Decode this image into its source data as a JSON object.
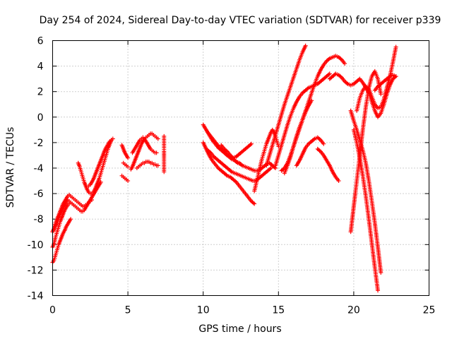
{
  "chart_data": {
    "type": "scatter",
    "title": "Day 254 of 2024, Sidereal Day-to-day VTEC variation (SDTVAR) for receiver p339",
    "xlabel": "GPS time / hours",
    "ylabel": "SDTVAR / TECUs",
    "xlim": [
      0,
      25
    ],
    "ylim": [
      -14,
      6
    ],
    "xticks": [
      0,
      5,
      10,
      15,
      20,
      25
    ],
    "xtick_labels": [
      "0",
      "5",
      "10",
      "15",
      "20",
      "25"
    ],
    "yticks": [
      -14,
      -12,
      -10,
      -8,
      -6,
      -4,
      -2,
      0,
      2,
      4,
      6
    ],
    "ytick_labels": [
      "-14",
      "-12",
      "-10",
      "-8",
      "-6",
      "-4",
      "-2",
      "0",
      "2",
      "4",
      "6"
    ],
    "grid": true,
    "marker": "+",
    "color": "#ff0000",
    "series": [
      {
        "x": [
          0.0,
          0.1,
          0.2,
          0.3,
          0.4,
          0.5,
          0.6,
          0.7,
          0.8,
          0.9,
          1.0,
          1.1,
          1.2
        ],
        "y": [
          -11.4,
          -11.2,
          -10.8,
          -10.4,
          -10.0,
          -9.7,
          -9.4,
          -9.1,
          -8.9,
          -8.6,
          -8.4,
          -8.2,
          -8.0
        ]
      },
      {
        "x": [
          0.0,
          0.1,
          0.2,
          0.3,
          0.4,
          0.5,
          0.6,
          0.7,
          0.8,
          0.9,
          1.0,
          1.1
        ],
        "y": [
          -10.2,
          -9.9,
          -9.4,
          -9.0,
          -8.6,
          -8.2,
          -7.9,
          -7.6,
          -7.3,
          -7.1,
          -6.9,
          -6.8
        ]
      },
      {
        "x": [
          0.0,
          0.1,
          0.2,
          0.3,
          0.4,
          0.5,
          0.6,
          0.7,
          0.8,
          0.9,
          1.0,
          1.1,
          1.2,
          1.3,
          1.4,
          1.5,
          1.6,
          1.7,
          1.8,
          1.9,
          2.0,
          2.1,
          2.2,
          2.3,
          2.4,
          2.5,
          2.6,
          2.7,
          2.8,
          2.9,
          3.0,
          3.1,
          3.2
        ],
        "y": [
          -9.0,
          -8.8,
          -8.5,
          -8.2,
          -7.9,
          -7.6,
          -7.4,
          -7.1,
          -6.9,
          -6.7,
          -6.5,
          -6.6,
          -6.7,
          -6.8,
          -6.9,
          -7.0,
          -7.1,
          -7.2,
          -7.3,
          -7.4,
          -7.4,
          -7.3,
          -7.1,
          -6.9,
          -6.7,
          -6.5,
          -6.3,
          -6.1,
          -5.9,
          -5.7,
          -5.5,
          -5.3,
          -5.1
        ]
      },
      {
        "x": [
          0.0,
          0.1,
          0.2,
          0.3,
          0.4,
          0.5,
          0.6,
          0.7,
          0.8,
          0.9,
          1.0,
          1.1,
          1.2,
          1.3,
          1.4,
          1.5,
          1.6,
          1.7,
          1.8,
          1.9,
          2.0,
          2.1,
          2.2,
          2.3,
          2.4,
          2.5,
          2.6
        ],
        "y": [
          -9.0,
          -8.7,
          -8.3,
          -8.0,
          -7.7,
          -7.4,
          -7.1,
          -6.8,
          -6.6,
          -6.4,
          -6.2,
          -6.1,
          -6.2,
          -6.3,
          -6.4,
          -6.5,
          -6.6,
          -6.7,
          -6.8,
          -6.9,
          -7.0,
          -7.0,
          -6.9,
          -6.8,
          -6.7,
          -6.6,
          -6.5
        ]
      },
      {
        "x": [
          1.7,
          1.8,
          1.9,
          2.0,
          2.1,
          2.2,
          2.3,
          2.4,
          2.5,
          2.6,
          2.7,
          2.8,
          2.9,
          3.0,
          3.1,
          3.2,
          3.3,
          3.4,
          3.5,
          3.6,
          3.7,
          3.8,
          3.9
        ],
        "y": [
          -3.6,
          -3.9,
          -4.3,
          -4.7,
          -5.1,
          -5.4,
          -5.7,
          -5.9,
          -6.0,
          -6.0,
          -5.9,
          -5.7,
          -5.4,
          -5.1,
          -4.8,
          -4.4,
          -4.0,
          -3.6,
          -3.2,
          -2.8,
          -2.4,
          -2.1,
          -1.8
        ]
      },
      {
        "x": [
          2.4,
          2.5,
          2.6,
          2.7,
          2.8,
          2.9,
          3.0,
          3.1,
          3.2,
          3.3,
          3.4,
          3.5,
          3.6,
          3.7,
          3.8,
          3.9,
          4.0
        ],
        "y": [
          -5.4,
          -5.3,
          -5.1,
          -4.9,
          -4.6,
          -4.3,
          -4.0,
          -3.7,
          -3.4,
          -3.1,
          -2.8,
          -2.5,
          -2.3,
          -2.1,
          -1.9,
          -1.8,
          -1.7
        ]
      },
      {
        "x": [
          4.6,
          4.7,
          4.8,
          4.9,
          5.0
        ],
        "y": [
          -2.2,
          -2.5,
          -2.8,
          -3.0,
          -3.2
        ]
      },
      {
        "x": [
          4.6,
          4.7,
          4.8,
          4.9,
          5.0
        ],
        "y": [
          -4.6,
          -4.7,
          -4.8,
          -4.9,
          -5.0
        ]
      },
      {
        "x": [
          4.7,
          4.8,
          4.9,
          5.0
        ],
        "y": [
          -3.6,
          -3.7,
          -3.8,
          -3.9
        ]
      },
      {
        "x": [
          5.2,
          5.3,
          5.4,
          5.5,
          5.6,
          5.7,
          5.8,
          5.9,
          6.0,
          6.1,
          6.2,
          6.3,
          6.4,
          6.5,
          6.6,
          6.7,
          6.8,
          6.9,
          7.0
        ],
        "y": [
          -4.1,
          -3.9,
          -3.6,
          -3.3,
          -3.0,
          -2.7,
          -2.4,
          -2.1,
          -1.9,
          -1.7,
          -1.6,
          -1.5,
          -1.4,
          -1.3,
          -1.3,
          -1.4,
          -1.5,
          -1.6,
          -1.7
        ]
      },
      {
        "x": [
          5.3,
          5.4,
          5.5,
          5.6,
          5.7,
          5.8,
          5.9,
          6.0,
          6.1,
          6.2,
          6.3,
          6.4,
          6.5,
          6.6,
          6.7,
          6.8,
          6.9
        ],
        "y": [
          -2.8,
          -2.6,
          -2.4,
          -2.2,
          -2.0,
          -1.8,
          -1.7,
          -1.6,
          -1.7,
          -1.9,
          -2.1,
          -2.3,
          -2.5,
          -2.6,
          -2.7,
          -2.8,
          -2.8
        ]
      },
      {
        "x": [
          5.6,
          5.7,
          5.8,
          5.9,
          6.0,
          6.1,
          6.2,
          6.3,
          6.4,
          6.5,
          6.6,
          6.7,
          6.8,
          6.9,
          7.0
        ],
        "y": [
          -4.0,
          -3.9,
          -3.8,
          -3.7,
          -3.6,
          -3.6,
          -3.5,
          -3.5,
          -3.5,
          -3.6,
          -3.6,
          -3.7,
          -3.7,
          -3.8,
          -3.8
        ]
      },
      {
        "x": [
          7.4,
          7.4,
          7.4,
          7.4,
          7.4
        ],
        "y": [
          -1.5,
          -2.4,
          -2.7,
          -3.4,
          -4.3
        ]
      },
      {
        "x": [
          10.0,
          10.2,
          10.4,
          10.6,
          10.8,
          11.0,
          11.2,
          11.4,
          11.6,
          11.8,
          12.0,
          12.2,
          12.4,
          12.6,
          12.8,
          13.0,
          13.2,
          13.4,
          13.6,
          13.8,
          14.0,
          14.2,
          14.4,
          14.6,
          14.8
        ],
        "y": [
          -0.6,
          -1.0,
          -1.4,
          -1.8,
          -2.1,
          -2.4,
          -2.6,
          -2.8,
          -3.0,
          -3.1,
          -3.3,
          -3.5,
          -3.6,
          -3.8,
          -3.9,
          -4.0,
          -4.1,
          -4.2,
          -4.2,
          -4.1,
          -3.9,
          -3.7,
          -3.6,
          -3.8,
          -4.0
        ]
      },
      {
        "x": [
          10.0,
          10.2,
          10.4,
          10.6,
          10.8,
          11.0,
          11.2,
          11.4,
          11.6,
          11.8,
          12.0,
          12.2,
          12.4,
          12.6,
          12.8,
          13.0,
          13.2,
          13.4
        ],
        "y": [
          -2.0,
          -2.5,
          -3.0,
          -3.4,
          -3.7,
          -4.0,
          -4.2,
          -4.4,
          -4.6,
          -4.7,
          -4.9,
          -5.1,
          -5.4,
          -5.7,
          -6.0,
          -6.3,
          -6.6,
          -6.8
        ]
      },
      {
        "x": [
          10.3,
          10.5,
          10.7,
          10.9,
          11.1,
          11.3,
          11.5,
          11.7,
          11.9,
          12.1,
          12.3,
          12.5
        ],
        "y": [
          -1.2,
          -1.5,
          -1.8,
          -2.1,
          -2.4,
          -2.6,
          -2.9,
          -3.1,
          -3.3,
          -3.4,
          -3.6,
          -3.7
        ]
      },
      {
        "x": [
          10.3,
          10.5,
          10.7,
          10.9,
          11.1,
          11.3,
          11.5,
          11.7,
          11.9,
          12.1,
          12.3,
          12.5,
          12.7,
          12.9,
          13.1,
          13.3,
          13.5,
          13.7,
          13.9,
          14.1,
          14.3,
          14.5
        ],
        "y": [
          -2.6,
          -2.8,
          -3.1,
          -3.3,
          -3.5,
          -3.7,
          -3.9,
          -4.1,
          -4.3,
          -4.4,
          -4.5,
          -4.6,
          -4.7,
          -4.8,
          -4.9,
          -5.0,
          -5.0,
          -4.8,
          -4.6,
          -4.4,
          -4.2,
          -4.0
        ]
      },
      {
        "x": [
          11.2,
          11.4,
          11.6,
          11.8,
          12.0,
          12.2,
          12.4,
          12.6,
          12.8,
          13.0,
          13.2
        ],
        "y": [
          -2.2,
          -2.5,
          -2.7,
          -3.0,
          -3.2,
          -3.1,
          -2.9,
          -2.7,
          -2.5,
          -2.3,
          -2.1
        ]
      },
      {
        "x": [
          13.4,
          13.5,
          13.6,
          13.7,
          13.8,
          13.9,
          14.0,
          14.1,
          14.2,
          14.3,
          14.4,
          14.5,
          14.6,
          14.7,
          14.8,
          14.9,
          15.0
        ],
        "y": [
          -5.8,
          -5.3,
          -4.8,
          -4.3,
          -3.8,
          -3.3,
          -2.9,
          -2.5,
          -2.1,
          -1.8,
          -1.5,
          -1.2,
          -1.0,
          -1.2,
          -1.5,
          -1.9,
          -2.3
        ]
      },
      {
        "x": [
          14.2,
          14.4,
          14.6,
          14.8,
          15.0,
          15.2,
          15.4,
          15.6,
          15.8,
          16.0,
          16.2,
          16.4,
          16.6,
          16.8
        ],
        "y": [
          -3.8,
          -3.0,
          -2.2,
          -1.4,
          -0.6,
          0.2,
          1.0,
          1.7,
          2.4,
          3.1,
          3.8,
          4.5,
          5.1,
          5.6
        ]
      },
      {
        "x": [
          14.8,
          15.0,
          15.2,
          15.4,
          15.6,
          15.8,
          16.0,
          16.2,
          16.4,
          16.6,
          16.8,
          17.0,
          17.2,
          17.4,
          17.6,
          17.8,
          18.0,
          18.2,
          18.4
        ],
        "y": [
          -3.8,
          -3.0,
          -2.2,
          -1.4,
          -0.6,
          0.1,
          0.7,
          1.2,
          1.6,
          1.9,
          2.1,
          2.3,
          2.4,
          2.5,
          2.6,
          2.8,
          3.0,
          3.2,
          3.4
        ]
      },
      {
        "x": [
          15.2,
          15.4,
          15.6,
          15.8,
          16.0,
          16.2,
          16.4,
          16.6,
          16.8,
          17.0,
          17.2,
          17.4,
          17.6,
          17.8,
          18.0,
          18.2,
          18.4,
          18.6,
          18.8,
          19.0,
          19.2,
          19.4
        ],
        "y": [
          -4.2,
          -4.0,
          -3.6,
          -3.0,
          -2.3,
          -1.6,
          -0.9,
          -0.2,
          0.5,
          1.2,
          1.9,
          2.6,
          3.2,
          3.7,
          4.1,
          4.4,
          4.6,
          4.7,
          4.8,
          4.7,
          4.5,
          4.2
        ]
      },
      {
        "x": [
          15.4,
          15.6,
          15.8,
          16.0,
          16.2,
          16.4,
          16.6,
          16.8,
          17.0,
          17.2
        ],
        "y": [
          -4.4,
          -3.8,
          -3.1,
          -2.3,
          -1.5,
          -0.8,
          -0.2,
          0.4,
          0.9,
          1.3
        ]
      },
      {
        "x": [
          16.2,
          16.4,
          16.6,
          16.8,
          17.0,
          17.2,
          17.4,
          17.6,
          17.8,
          18.0
        ],
        "y": [
          -3.8,
          -3.4,
          -2.9,
          -2.4,
          -2.1,
          -1.9,
          -1.7,
          -1.6,
          -1.8,
          -2.1
        ]
      },
      {
        "x": [
          17.6,
          17.8,
          18.0,
          18.2,
          18.4,
          18.6,
          18.8,
          19.0
        ],
        "y": [
          -2.5,
          -2.7,
          -3.0,
          -3.4,
          -3.8,
          -4.3,
          -4.7,
          -5.0
        ]
      },
      {
        "x": [
          18.4,
          18.6,
          18.8,
          19.0,
          19.2,
          19.4,
          19.6,
          19.8,
          20.0,
          20.2,
          20.4,
          20.6,
          20.8,
          21.0
        ],
        "y": [
          3.0,
          3.2,
          3.4,
          3.3,
          3.1,
          2.8,
          2.6,
          2.5,
          2.6,
          2.8,
          3.0,
          2.7,
          2.3,
          1.9
        ]
      },
      {
        "x": [
          19.8,
          20.0,
          20.2,
          20.4,
          20.6,
          20.8,
          21.0,
          21.2,
          21.4,
          21.6,
          21.8
        ],
        "y": [
          -9.0,
          -7.0,
          -5.0,
          -3.0,
          -1.0,
          0.8,
          2.3,
          3.2,
          3.6,
          3.0,
          1.8
        ]
      },
      {
        "x": [
          19.8,
          20.0,
          20.2,
          20.4,
          20.6,
          20.8,
          21.0,
          21.2,
          21.4,
          21.6,
          21.8
        ],
        "y": [
          0.5,
          -0.3,
          -1.0,
          -1.8,
          -2.6,
          -3.6,
          -5.0,
          -6.6,
          -8.3,
          -10.2,
          -12.2
        ]
      },
      {
        "x": [
          20.0,
          20.2,
          20.4,
          20.6,
          20.8,
          21.0,
          21.2,
          21.4,
          21.6
        ],
        "y": [
          -1.0,
          -2.0,
          -3.2,
          -4.6,
          -6.2,
          -8.0,
          -9.9,
          -11.8,
          -13.6
        ]
      },
      {
        "x": [
          20.2,
          20.4,
          20.6,
          20.8,
          21.0,
          21.2,
          21.4,
          21.6,
          21.8,
          22.0,
          22.2,
          22.4,
          22.6,
          22.8
        ],
        "y": [
          0.5,
          1.5,
          2.1,
          2.4,
          2.2,
          1.6,
          1.0,
          0.7,
          0.8,
          1.4,
          2.3,
          3.2,
          4.3,
          5.5
        ]
      },
      {
        "x": [
          21.0,
          21.2,
          21.4,
          21.6,
          21.8,
          22.0,
          22.2,
          22.4,
          22.6,
          22.8
        ],
        "y": [
          2.0,
          1.2,
          0.5,
          0.0,
          0.3,
          1.0,
          1.8,
          2.5,
          3.0,
          3.2
        ]
      },
      {
        "x": [
          21.4,
          21.6,
          21.8,
          22.0,
          22.2,
          22.4,
          22.6,
          22.8
        ],
        "y": [
          2.1,
          2.4,
          2.6,
          2.8,
          3.0,
          3.2,
          3.3,
          3.2
        ]
      }
    ]
  }
}
